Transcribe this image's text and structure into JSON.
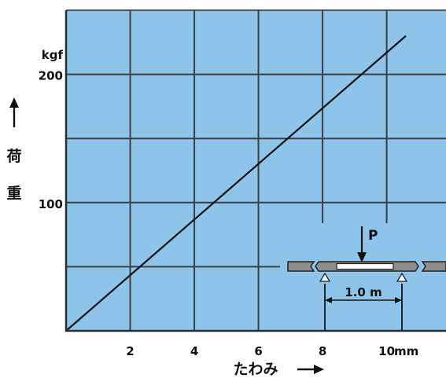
{
  "chart_data": {
    "type": "line",
    "xlabel": "たわみ",
    "ylabel": "荷重",
    "xunit": "mm",
    "yunit": "kgf",
    "xlim": [
      0,
      11.85
    ],
    "ylim": [
      0,
      250
    ],
    "x_ticks": [
      2,
      4,
      6,
      8,
      10
    ],
    "x_tick_labels": [
      "2",
      "4",
      "6",
      "8",
      "10"
    ],
    "y_ticks": [
      100,
      200
    ],
    "y_tick_labels": [
      "100",
      "200"
    ],
    "grid": true,
    "x_grid": [
      2,
      4,
      6,
      8,
      10
    ],
    "y_grid": [
      50,
      100,
      150,
      200
    ],
    "series": [
      {
        "x": [
          0,
          10.6
        ],
        "y": [
          0,
          230
        ]
      }
    ]
  },
  "inset": {
    "load_label": "P",
    "span_label": "1.0 m"
  },
  "icons": {
    "y_axis_arrow": "arrow-up-icon",
    "x_axis_arrow": "arrow-right-icon",
    "load_arrow": "arrow-down-icon",
    "supports": "triangle-support-icon"
  },
  "colors": {
    "plot_background": "#8ec4ea",
    "grid": "#3b3f44",
    "series_line": "#111111",
    "beam": "#8d8d8d",
    "ink": "#111111"
  }
}
